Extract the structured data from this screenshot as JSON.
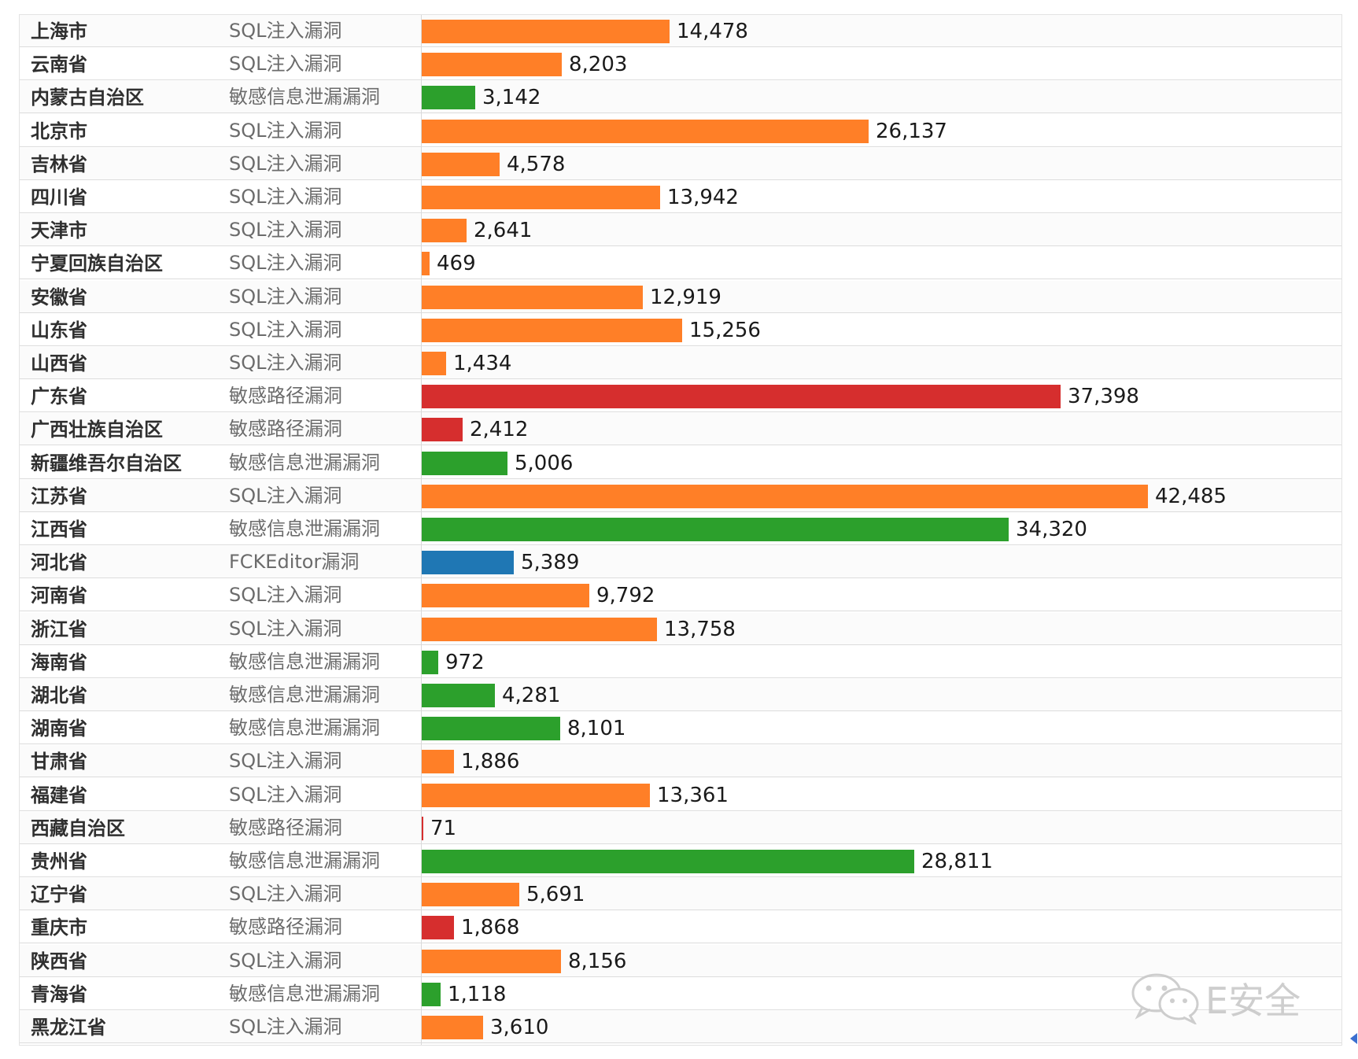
{
  "chart_data": {
    "type": "bar",
    "orientation": "horizontal",
    "xlim": [
      0,
      42485
    ],
    "grid": false,
    "legend": "none",
    "colors": {
      "SQL注入漏洞": "#ff7f27",
      "敏感信息泄漏漏洞": "#2ca02c",
      "敏感路径漏洞": "#d62e2e",
      "FCKEditor漏洞": "#1f77b4"
    },
    "rows": [
      {
        "region": "上海市",
        "vuln": "SQL注入漏洞",
        "value": 14478,
        "label": "14,478"
      },
      {
        "region": "云南省",
        "vuln": "SQL注入漏洞",
        "value": 8203,
        "label": "8,203"
      },
      {
        "region": "内蒙古自治区",
        "vuln": "敏感信息泄漏漏洞",
        "value": 3142,
        "label": "3,142"
      },
      {
        "region": "北京市",
        "vuln": "SQL注入漏洞",
        "value": 26137,
        "label": "26,137"
      },
      {
        "region": "吉林省",
        "vuln": "SQL注入漏洞",
        "value": 4578,
        "label": "4,578"
      },
      {
        "region": "四川省",
        "vuln": "SQL注入漏洞",
        "value": 13942,
        "label": "13,942"
      },
      {
        "region": "天津市",
        "vuln": "SQL注入漏洞",
        "value": 2641,
        "label": "2,641"
      },
      {
        "region": "宁夏回族自治区",
        "vuln": "SQL注入漏洞",
        "value": 469,
        "label": "469"
      },
      {
        "region": "安徽省",
        "vuln": "SQL注入漏洞",
        "value": 12919,
        "label": "12,919"
      },
      {
        "region": "山东省",
        "vuln": "SQL注入漏洞",
        "value": 15256,
        "label": "15,256"
      },
      {
        "region": "山西省",
        "vuln": "SQL注入漏洞",
        "value": 1434,
        "label": "1,434"
      },
      {
        "region": "广东省",
        "vuln": "敏感路径漏洞",
        "value": 37398,
        "label": "37,398"
      },
      {
        "region": "广西壮族自治区",
        "vuln": "敏感路径漏洞",
        "value": 2412,
        "label": "2,412"
      },
      {
        "region": "新疆维吾尔自治区",
        "vuln": "敏感信息泄漏漏洞",
        "value": 5006,
        "label": "5,006"
      },
      {
        "region": "江苏省",
        "vuln": "SQL注入漏洞",
        "value": 42485,
        "label": "42,485"
      },
      {
        "region": "江西省",
        "vuln": "敏感信息泄漏漏洞",
        "value": 34320,
        "label": "34,320"
      },
      {
        "region": "河北省",
        "vuln": "FCKEditor漏洞",
        "value": 5389,
        "label": "5,389"
      },
      {
        "region": "河南省",
        "vuln": "SQL注入漏洞",
        "value": 9792,
        "label": "9,792"
      },
      {
        "region": "浙江省",
        "vuln": "SQL注入漏洞",
        "value": 13758,
        "label": "13,758"
      },
      {
        "region": "海南省",
        "vuln": "敏感信息泄漏漏洞",
        "value": 972,
        "label": "972"
      },
      {
        "region": "湖北省",
        "vuln": "敏感信息泄漏漏洞",
        "value": 4281,
        "label": "4,281"
      },
      {
        "region": "湖南省",
        "vuln": "敏感信息泄漏漏洞",
        "value": 8101,
        "label": "8,101"
      },
      {
        "region": "甘肃省",
        "vuln": "SQL注入漏洞",
        "value": 1886,
        "label": "1,886"
      },
      {
        "region": "福建省",
        "vuln": "SQL注入漏洞",
        "value": 13361,
        "label": "13,361"
      },
      {
        "region": "西藏自治区",
        "vuln": "敏感路径漏洞",
        "value": 71,
        "label": "71"
      },
      {
        "region": "贵州省",
        "vuln": "敏感信息泄漏漏洞",
        "value": 28811,
        "label": "28,811"
      },
      {
        "region": "辽宁省",
        "vuln": "SQL注入漏洞",
        "value": 5691,
        "label": "5,691"
      },
      {
        "region": "重庆市",
        "vuln": "敏感路径漏洞",
        "value": 1868,
        "label": "1,868"
      },
      {
        "region": "陕西省",
        "vuln": "SQL注入漏洞",
        "value": 8156,
        "label": "8,156"
      },
      {
        "region": "青海省",
        "vuln": "敏感信息泄漏漏洞",
        "value": 1118,
        "label": "1,118"
      },
      {
        "region": "黑龙江省",
        "vuln": "SQL注入漏洞",
        "value": 3610,
        "label": "3,610"
      }
    ]
  },
  "watermark": {
    "text": "E安全",
    "icon": "wechat-icon",
    "color": "#c6c6c6"
  }
}
